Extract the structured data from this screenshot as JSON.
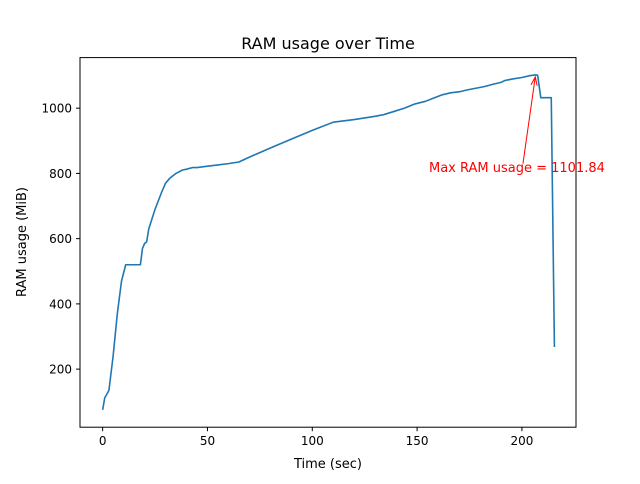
{
  "chart_data": {
    "type": "line",
    "title": "RAM usage over Time",
    "xlabel": "Time (sec)",
    "ylabel": "RAM usage (MiB)",
    "xlim": [
      -10.8,
      225.8
    ],
    "ylim": [
      22,
      1155
    ],
    "xticks": [
      0,
      50,
      100,
      150,
      200
    ],
    "yticks": [
      200,
      400,
      600,
      800,
      1000
    ],
    "grid": false,
    "line_color": "#1f77b4",
    "annotation": {
      "text": "Max RAM usage = 1101.84",
      "color": "#ff0000",
      "point": [
        206.5,
        1101.84
      ],
      "text_anchor": [
        200.5,
        830
      ]
    },
    "series": [
      {
        "x": [
          0,
          1,
          3,
          5,
          7,
          9,
          11,
          12,
          18,
          19,
          20,
          21,
          22,
          23,
          25,
          28,
          30,
          32,
          35,
          38,
          40,
          43,
          45,
          50,
          55,
          60,
          65,
          70,
          80,
          90,
          100,
          110,
          120,
          125,
          130,
          134,
          139,
          144,
          149,
          154,
          158,
          162,
          166,
          170,
          174,
          178,
          182,
          186,
          190,
          192,
          196,
          200,
          204,
          206.5,
          207.5,
          209,
          214,
          215.5
        ],
        "y": [
          75,
          112,
          135,
          240,
          370,
          470,
          520,
          520,
          520,
          570,
          585,
          590,
          630,
          650,
          690,
          740,
          770,
          785,
          800,
          810,
          813,
          818,
          818,
          822,
          826,
          830,
          835,
          850,
          878,
          905,
          932,
          957,
          965,
          970,
          975,
          980,
          990,
          1000,
          1013,
          1021,
          1031,
          1041,
          1047,
          1050,
          1056,
          1061,
          1066,
          1073,
          1079,
          1085,
          1090,
          1094,
          1100,
          1101.84,
          1101,
          1032,
          1032,
          268
        ]
      }
    ]
  }
}
